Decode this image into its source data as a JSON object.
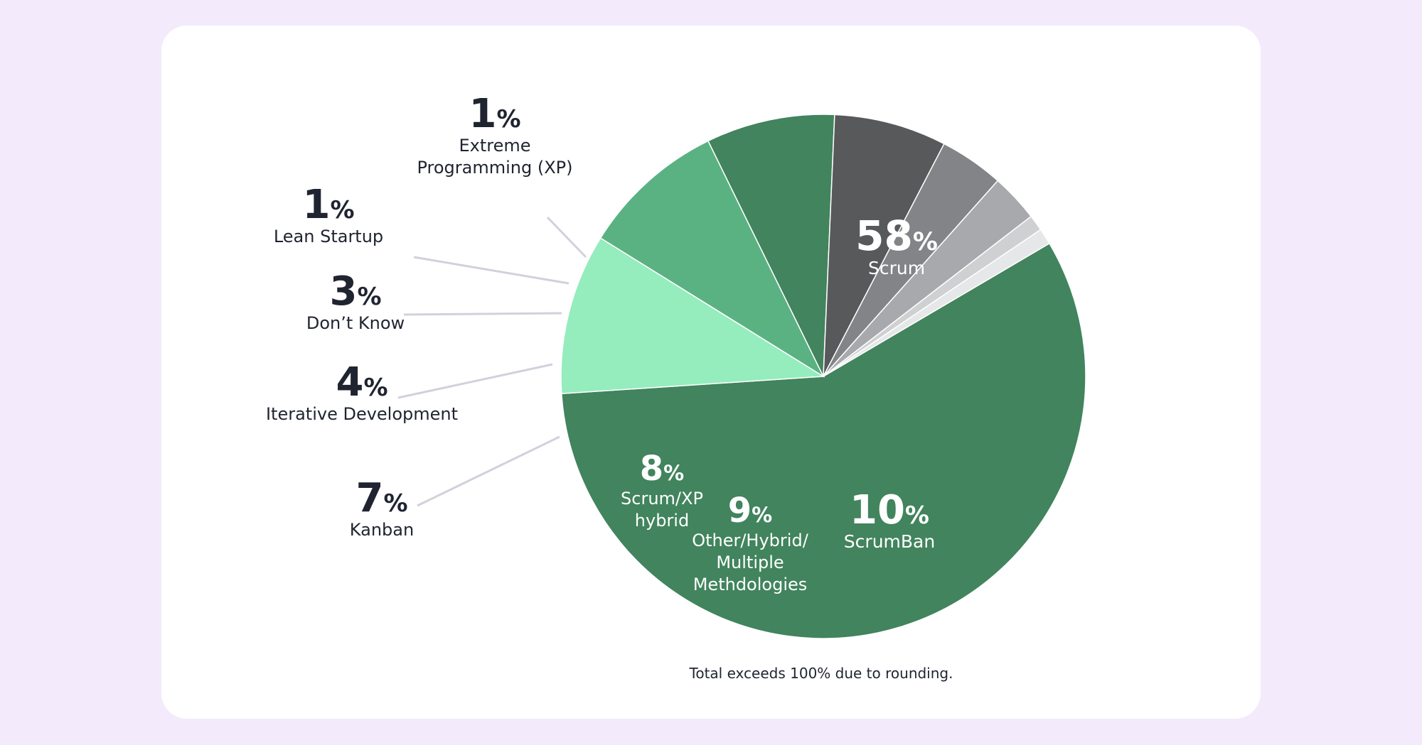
{
  "chart_data": {
    "type": "pie",
    "footnote": "Total exceeds 100% due to rounding.",
    "slices": [
      {
        "label_lines": [
          "Scrum"
        ],
        "value": 58,
        "value_label": "58",
        "color": "#41845d",
        "label_color": "#ffffff"
      },
      {
        "label_lines": [
          "ScrumBan"
        ],
        "value": 10,
        "value_label": "10",
        "color": "#95ecbd",
        "label_color": "#ffffff"
      },
      {
        "label_lines": [
          "Other/Hybrid/",
          "Multiple",
          "Methdologies"
        ],
        "value": 9,
        "value_label": "9",
        "color": "#5ab282",
        "label_color": "#ffffff"
      },
      {
        "label_lines": [
          "Scrum/XP",
          "hybrid"
        ],
        "value": 8,
        "value_label": "8",
        "color": "#41845d",
        "label_color": "#ffffff"
      },
      {
        "label_lines": [
          "Kanban"
        ],
        "value": 7,
        "value_label": "7",
        "color": "#58595b",
        "label_color": "#1f2430"
      },
      {
        "label_lines": [
          "Iterative Development"
        ],
        "value": 4,
        "value_label": "4",
        "color": "#838487",
        "label_color": "#1f2430"
      },
      {
        "label_lines": [
          "Don’t Know"
        ],
        "value": 3,
        "value_label": "3",
        "color": "#a8a9ad",
        "label_color": "#1f2430"
      },
      {
        "label_lines": [
          "Lean Startup"
        ],
        "value": 1,
        "value_label": "1",
        "color": "#cfd0d2",
        "label_color": "#1f2430"
      },
      {
        "label_lines": [
          "Extreme",
          "Programming (XP)"
        ],
        "value": 1,
        "value_label": "1",
        "color": "#e6e7e8",
        "label_color": "#1f2430"
      }
    ],
    "percent_sign": "%"
  }
}
